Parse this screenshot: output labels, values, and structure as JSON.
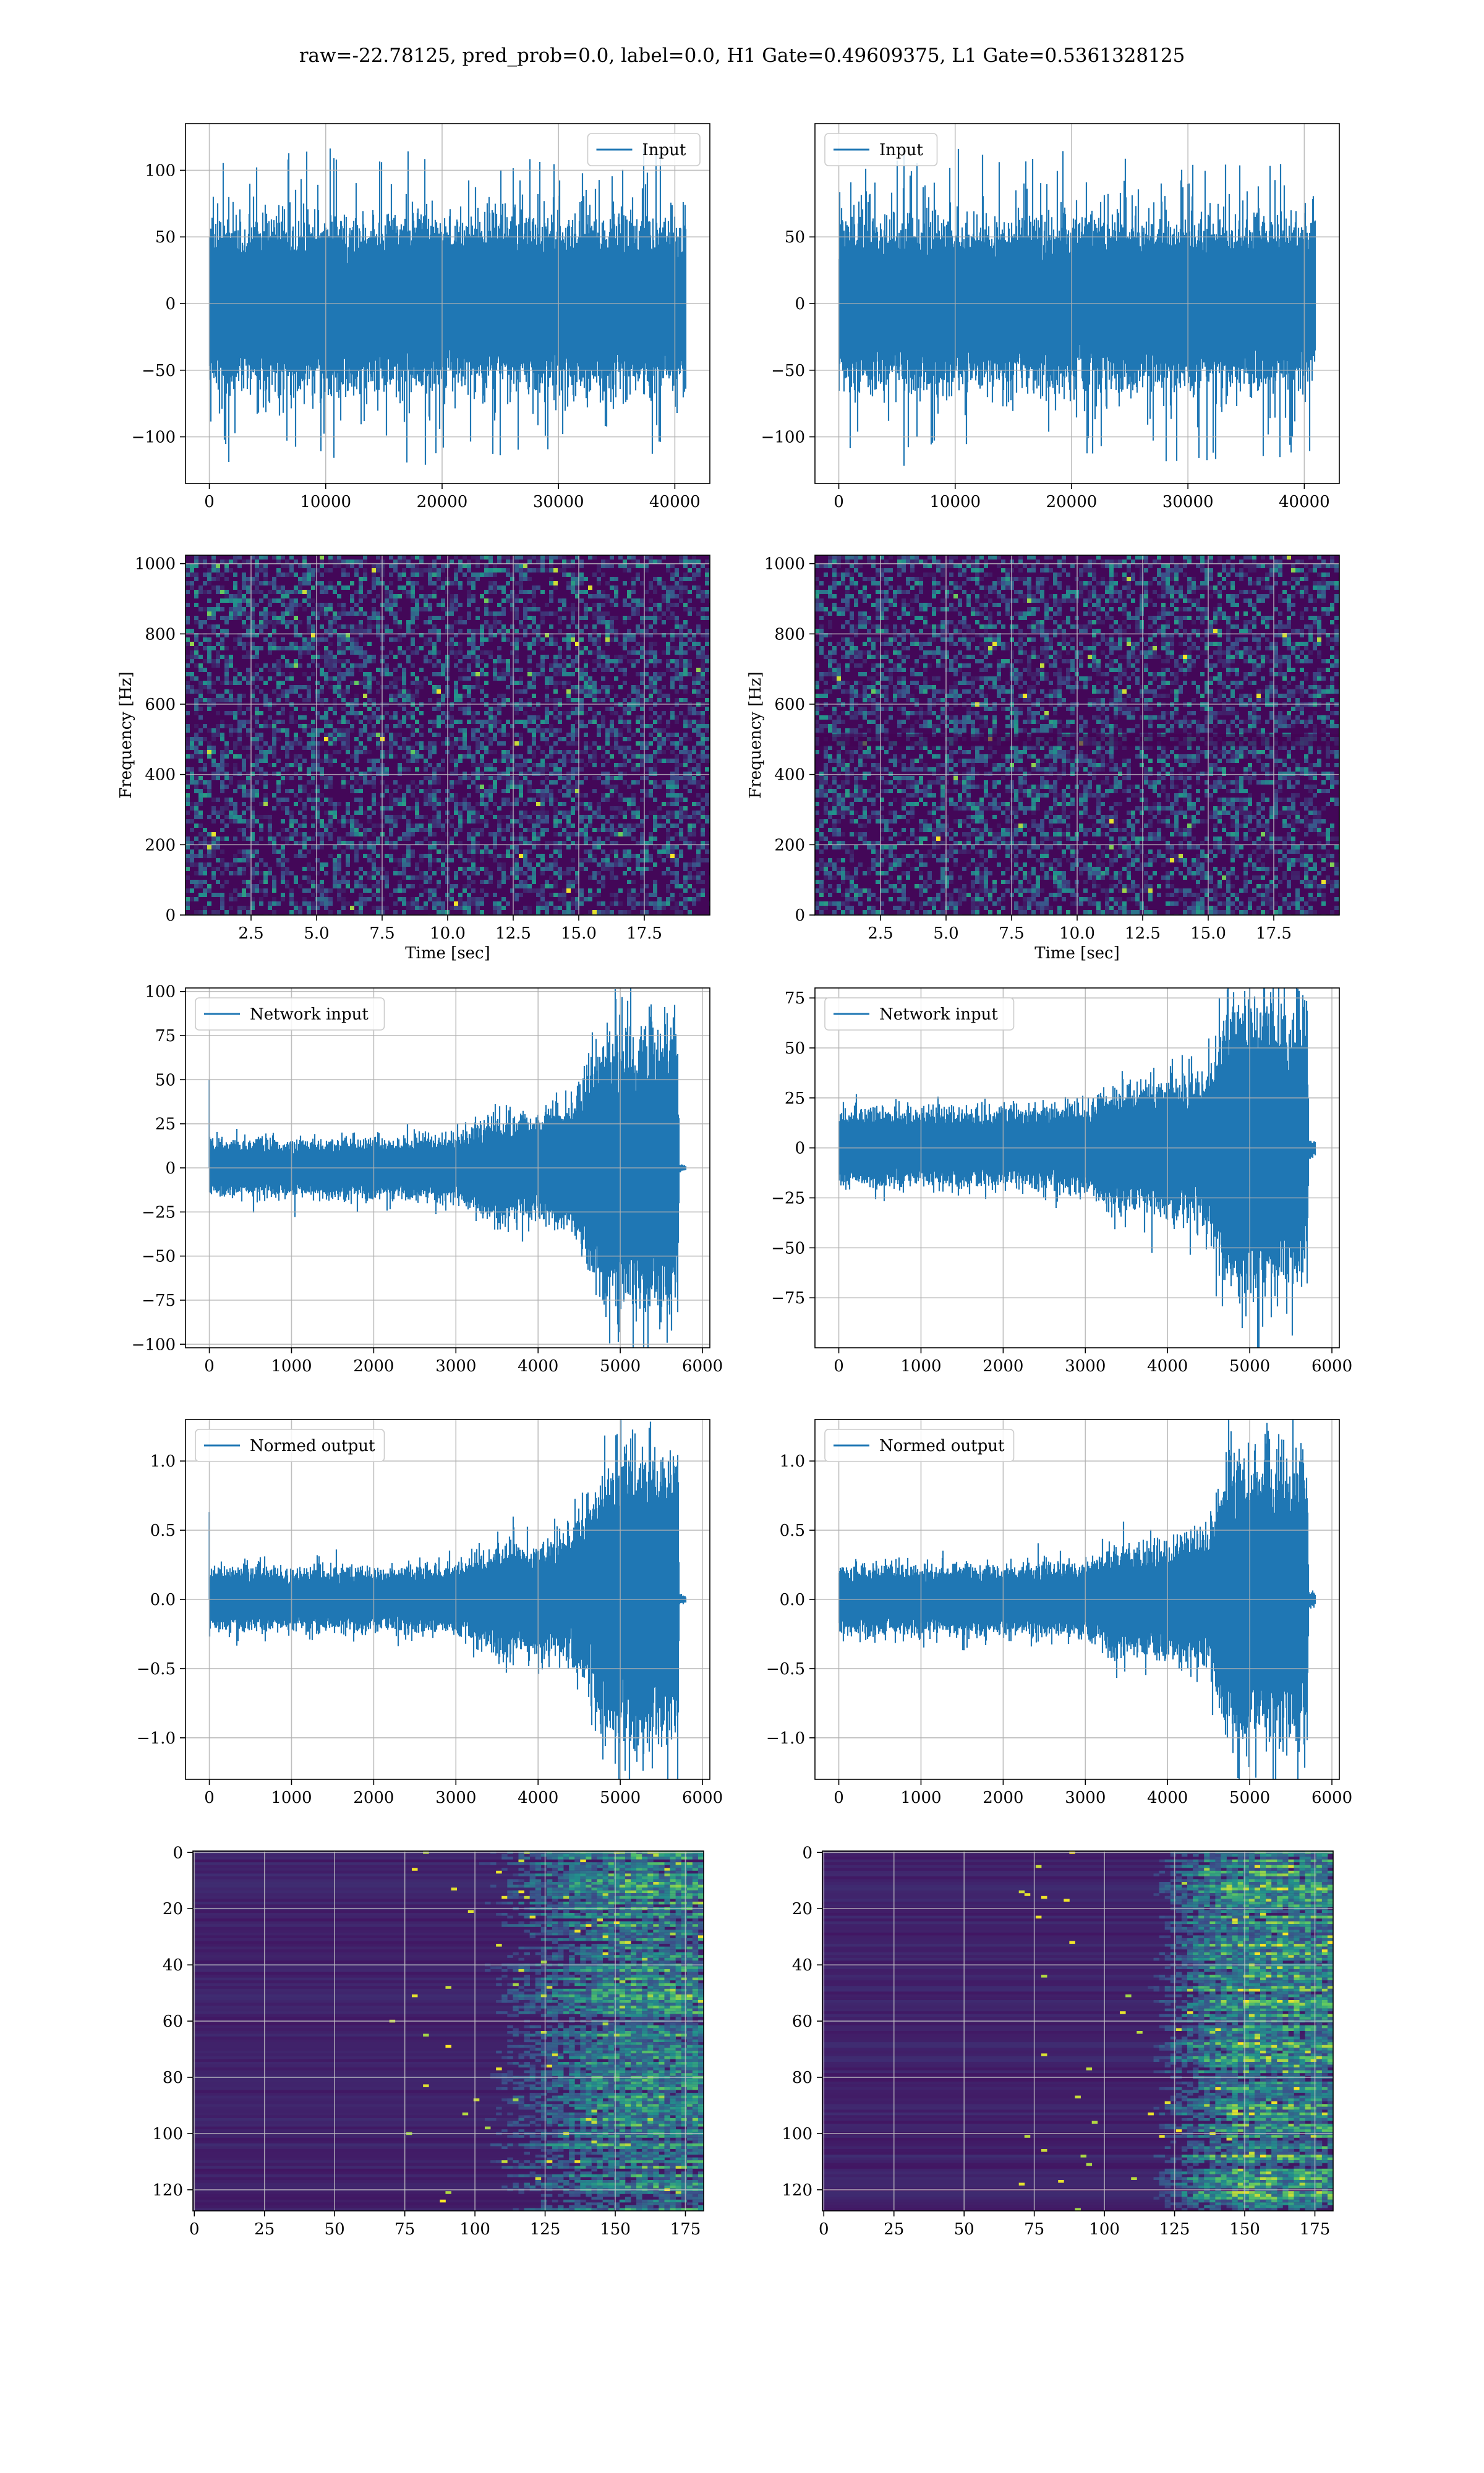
{
  "figure": {
    "suptitle": "raw=-22.78125, pred_prob=0.0, label=0.0, H1 Gate=0.49609375, L1 Gate=0.5361328125",
    "colors": {
      "line": "#1f77b4",
      "grid": "#b0b0b0",
      "frame": "#000000",
      "background": "#ffffff",
      "legend_border": "#cccccc"
    }
  },
  "chart_data": [
    {
      "id": "input-h1",
      "type": "line",
      "grid": true,
      "legend": "top-right",
      "series": [
        {
          "name": "Input",
          "description": "dense white-noise strain, roughly symmetric about 0, typical envelope ±60 with spikes to about ±120",
          "n_samples": 40960
        }
      ],
      "xlim": [
        -2048,
        43008
      ],
      "ylim": [
        -135,
        135
      ],
      "xticks": [
        0,
        10000,
        20000,
        30000,
        40000
      ],
      "xticklabels": [
        "0",
        "10000",
        "20000",
        "30000",
        "40000"
      ],
      "yticks": [
        -100,
        -50,
        0,
        50,
        100
      ],
      "yticklabels": [
        "−100",
        "−50",
        "0",
        "50",
        "100"
      ],
      "xlabel": "",
      "ylabel": ""
    },
    {
      "id": "input-l1",
      "type": "line",
      "grid": true,
      "legend": "top-left",
      "series": [
        {
          "name": "Input",
          "description": "dense white-noise strain, roughly symmetric about 0, typical envelope ±60 with spikes to about ±120",
          "n_samples": 40960
        }
      ],
      "xlim": [
        -2048,
        43008
      ],
      "ylim": [
        -135,
        135
      ],
      "xticks": [
        0,
        10000,
        20000,
        30000,
        40000
      ],
      "xticklabels": [
        "0",
        "10000",
        "20000",
        "30000",
        "40000"
      ],
      "yticks": [
        -100,
        -50,
        0,
        50
      ],
      "yticklabels": [
        "−100",
        "−50",
        "0",
        "50"
      ],
      "xlabel": "",
      "ylabel": ""
    },
    {
      "id": "spectrogram-h1",
      "type": "heatmap",
      "grid": true,
      "colormap": "viridis",
      "xlim": [
        0,
        20
      ],
      "ylim": [
        0,
        1024
      ],
      "xticks": [
        2.5,
        5.0,
        7.5,
        10.0,
        12.5,
        15.0,
        17.5
      ],
      "xticklabels": [
        "2.5",
        "5.0",
        "7.5",
        "10.0",
        "12.5",
        "15.0",
        "17.5"
      ],
      "yticks": [
        0,
        200,
        400,
        600,
        800,
        1000
      ],
      "yticklabels": [
        "0",
        "200",
        "400",
        "600",
        "800",
        "1000"
      ],
      "xlabel": "Time [sec]",
      "ylabel": "Frequency [Hz]"
    },
    {
      "id": "spectrogram-l1",
      "type": "heatmap",
      "grid": true,
      "colormap": "viridis",
      "xlim": [
        0,
        20
      ],
      "ylim": [
        0,
        1024
      ],
      "xticks": [
        2.5,
        5.0,
        7.5,
        10.0,
        12.5,
        15.0,
        17.5
      ],
      "xticklabels": [
        "2.5",
        "5.0",
        "7.5",
        "10.0",
        "12.5",
        "15.0",
        "17.5"
      ],
      "yticks": [
        0,
        200,
        400,
        600,
        800,
        1000
      ],
      "yticklabels": [
        "0",
        "200",
        "400",
        "600",
        "800",
        "1000"
      ],
      "xlabel": "Time [sec]",
      "ylabel": "Frequency [Hz]"
    },
    {
      "id": "network-input-h1",
      "type": "line",
      "grid": true,
      "legend": "top-left",
      "series": [
        {
          "name": "Network input",
          "n_samples": 5800,
          "envelope": {
            "x": [
              0,
              500,
              1000,
              2000,
              3000,
              3300,
              3500,
              4000,
              4400,
              4600,
              4800,
              5000,
              5200,
              5500,
              5700,
              5720,
              5800
            ],
            "amp": [
              13,
              14,
              13,
              14,
              15,
              22,
              25,
              25,
              30,
              45,
              60,
              70,
              70,
              65,
              70,
              2,
              1
            ]
          },
          "spike": {
            "x": 0,
            "y": 50
          }
        }
      ],
      "xlim": [
        -290,
        6090
      ],
      "ylim": [
        -102,
        102
      ],
      "xticks": [
        0,
        1000,
        2000,
        3000,
        4000,
        5000,
        6000
      ],
      "xticklabels": [
        "0",
        "1000",
        "2000",
        "3000",
        "4000",
        "5000",
        "6000"
      ],
      "yticks": [
        -100,
        -75,
        -50,
        -25,
        0,
        25,
        50,
        75,
        100
      ],
      "yticklabels": [
        "−100",
        "−75",
        "−50",
        "−25",
        "0",
        "25",
        "50",
        "75",
        "100"
      ],
      "xlabel": "",
      "ylabel": ""
    },
    {
      "id": "network-input-l1",
      "type": "line",
      "grid": true,
      "legend": "top-left",
      "series": [
        {
          "name": "Network input",
          "n_samples": 5800,
          "envelope": {
            "x": [
              0,
              1000,
              2000,
              3000,
              3400,
              4000,
              4500,
              4700,
              5000,
              5500,
              5700,
              5720,
              5800
            ],
            "amp": [
              15,
              16,
              16,
              18,
              25,
              28,
              32,
              60,
              62,
              60,
              60,
              4,
              3
            ]
          }
        }
      ],
      "xlim": [
        -290,
        6090
      ],
      "ylim": [
        -100,
        80
      ],
      "xticks": [
        0,
        1000,
        2000,
        3000,
        4000,
        5000,
        6000
      ],
      "xticklabels": [
        "0",
        "1000",
        "2000",
        "3000",
        "4000",
        "5000",
        "6000"
      ],
      "yticks": [
        -75,
        -50,
        -25,
        0,
        25,
        50,
        75
      ],
      "yticklabels": [
        "−75",
        "−50",
        "−25",
        "0",
        "25",
        "50",
        "75"
      ],
      "xlabel": "",
      "ylabel": ""
    },
    {
      "id": "normed-output-h1",
      "type": "line",
      "grid": true,
      "legend": "top-left",
      "series": [
        {
          "name": "Normed output",
          "n_samples": 5800,
          "envelope": {
            "x": [
              0,
              500,
              1000,
              2000,
              3000,
              3300,
              3500,
              4000,
              4400,
              4600,
              4800,
              5000,
              5200,
              5500,
              5700,
              5720,
              5800
            ],
            "amp": [
              0.18,
              0.19,
              0.18,
              0.19,
              0.2,
              0.28,
              0.32,
              0.33,
              0.4,
              0.58,
              0.78,
              0.9,
              0.9,
              0.85,
              0.88,
              0.03,
              0.02
            ]
          },
          "spike": {
            "x": 0,
            "y": 0.63
          }
        }
      ],
      "xlim": [
        -290,
        6090
      ],
      "ylim": [
        -1.3,
        1.3
      ],
      "xticks": [
        0,
        1000,
        2000,
        3000,
        4000,
        5000,
        6000
      ],
      "xticklabels": [
        "0",
        "1000",
        "2000",
        "3000",
        "4000",
        "5000",
        "6000"
      ],
      "yticks": [
        -1.0,
        -0.5,
        0.0,
        0.5,
        1.0
      ],
      "yticklabels": [
        "−1.0",
        "−0.5",
        "0.0",
        "0.5",
        "1.0"
      ],
      "xlabel": "",
      "ylabel": ""
    },
    {
      "id": "normed-output-l1",
      "type": "line",
      "grid": true,
      "legend": "top-left",
      "series": [
        {
          "name": "Normed output",
          "n_samples": 5800,
          "envelope": {
            "x": [
              0,
              1000,
              2000,
              3000,
              3400,
              4000,
              4500,
              4700,
              5000,
              5500,
              5700,
              5720,
              5800
            ],
            "amp": [
              0.2,
              0.21,
              0.21,
              0.22,
              0.33,
              0.36,
              0.42,
              0.85,
              0.88,
              0.85,
              0.85,
              0.05,
              0.04
            ]
          }
        }
      ],
      "xlim": [
        -290,
        6090
      ],
      "ylim": [
        -1.3,
        1.3
      ],
      "xticks": [
        0,
        1000,
        2000,
        3000,
        4000,
        5000,
        6000
      ],
      "xticklabels": [
        "0",
        "1000",
        "2000",
        "3000",
        "4000",
        "5000",
        "6000"
      ],
      "yticks": [
        -1.0,
        -0.5,
        0.0,
        0.5,
        1.0
      ],
      "yticklabels": [
        "−1.0",
        "−0.5",
        "0.0",
        "0.5",
        "1.0"
      ],
      "xlabel": "",
      "ylabel": ""
    },
    {
      "id": "feature-map-h1",
      "type": "heatmap",
      "grid": true,
      "colormap": "viridis",
      "rows": 128,
      "cols": 182,
      "intensity_profile": {
        "x": [
          0,
          100,
          120,
          140,
          160,
          182
        ],
        "level": [
          0.08,
          0.1,
          0.25,
          0.4,
          0.5,
          0.45
        ]
      },
      "xlim": [
        -0.5,
        181.5
      ],
      "ylim": [
        127.5,
        -0.5
      ],
      "xticks": [
        0,
        25,
        50,
        75,
        100,
        125,
        150,
        175
      ],
      "xticklabels": [
        "0",
        "25",
        "50",
        "75",
        "100",
        "125",
        "150",
        "175"
      ],
      "yticks": [
        0,
        20,
        40,
        60,
        80,
        100,
        120
      ],
      "yticklabels": [
        "0",
        "20",
        "40",
        "60",
        "80",
        "100",
        "120"
      ],
      "xlabel": "",
      "ylabel": ""
    },
    {
      "id": "feature-map-l1",
      "type": "heatmap",
      "grid": true,
      "colormap": "viridis",
      "rows": 128,
      "cols": 182,
      "intensity_profile": {
        "x": [
          0,
          115,
          125,
          135,
          150,
          182
        ],
        "level": [
          0.08,
          0.1,
          0.25,
          0.4,
          0.55,
          0.5
        ]
      },
      "xlim": [
        -0.5,
        181.5
      ],
      "ylim": [
        127.5,
        -0.5
      ],
      "xticks": [
        0,
        25,
        50,
        75,
        100,
        125,
        150,
        175
      ],
      "xticklabels": [
        "0",
        "25",
        "50",
        "75",
        "100",
        "125",
        "150",
        "175"
      ],
      "yticks": [
        0,
        20,
        40,
        60,
        80,
        100,
        120
      ],
      "yticklabels": [
        "0",
        "20",
        "40",
        "60",
        "80",
        "100",
        "120"
      ],
      "xlabel": "",
      "ylabel": ""
    }
  ]
}
